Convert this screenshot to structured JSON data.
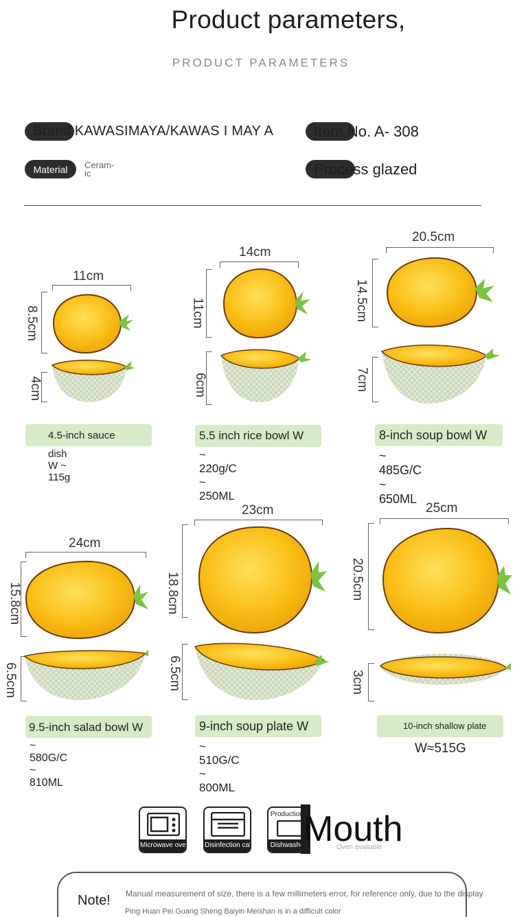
{
  "header": {
    "title": "Product parameters,",
    "subtitle": "PRODUCT PARAMETERS"
  },
  "params": {
    "brand": {
      "label": "Brand",
      "value": "Brand KAWASIMAYA/KAWAS I MAY A"
    },
    "item_no": {
      "label": "Item No.",
      "value": "Item No. A- 308"
    },
    "material": {
      "label": "Material",
      "value": "Ceram-ic"
    },
    "process": {
      "label": "Process",
      "value": "Process glazed"
    }
  },
  "products": [
    {
      "width": "11cm",
      "height": "8.5cm",
      "depth": "4cm",
      "name": "4.5-inch sauce",
      "detail": "dish W ~ 115g"
    },
    {
      "width": "14cm",
      "height": "11cm",
      "depth": "6cm",
      "name": "5.5 inch rice bowl W",
      "detail": "~ 220g/C ~ 250ML"
    },
    {
      "width": "20.5cm",
      "height": "14.5cm",
      "depth": "7cm",
      "name": "8-inch soup bowl W",
      "detail": "~ 485G/C ~ 650ML"
    },
    {
      "width": "24cm",
      "height": "15.8cm",
      "depth": "6.5cm",
      "name": "9.5-inch salad bowl W",
      "detail": "~ 580G/C ~ 810ML"
    },
    {
      "width": "23cm",
      "height": "18.8cm",
      "depth": "6.5cm",
      "name": "9-inch soup plate W",
      "detail": "~ 510G/C ~ 800ML"
    },
    {
      "width": "25cm",
      "height": "20.5cm",
      "depth": "3cm",
      "name": "10-inch shallow plate",
      "detail": "W≈515G"
    }
  ],
  "features": [
    {
      "icon": "microwave-icon",
      "band": "Microwave oven available",
      "caption": "Microwave oven available"
    },
    {
      "icon": "oven-icon",
      "band": "Disinfection cabinet",
      "caption": "Disinfection cabinet"
    },
    {
      "icon": "dishwasher-icon",
      "band": "Dishwasher a",
      "caption": "Production"
    },
    {
      "icon": "mouth-icon",
      "band": "Oven available",
      "caption": "Mouth"
    }
  ],
  "note": {
    "title": "Note!",
    "line1": "Manual measurement of size, there is a few millimeters error, for reference only, due to the display",
    "line2": "Ping Huan Pei Guang Sheng Baiyin Meishan is in a difficult color"
  },
  "colors": {
    "glaze": "#f7b812",
    "glaze_light": "#fcd44a",
    "rim": "#6a3a12",
    "leaf": "#7cc242",
    "outer": "#d6e3c7",
    "label_bg": "#d7ebc8"
  }
}
